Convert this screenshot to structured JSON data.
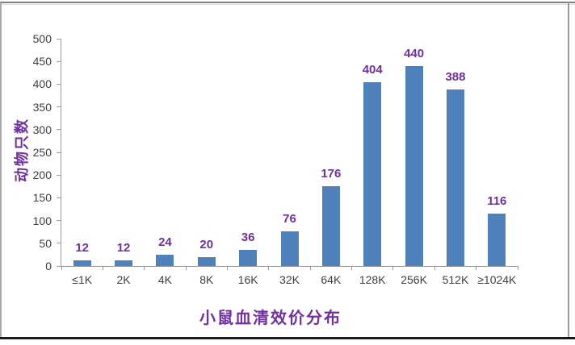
{
  "chart_data": {
    "type": "bar",
    "title": "",
    "categories": [
      "≤1K",
      "2K",
      "4K",
      "8K",
      "16K",
      "32K",
      "64K",
      "128K",
      "256K",
      "512K",
      "≥1024K"
    ],
    "values": [
      12,
      12,
      24,
      20,
      36,
      76,
      176,
      404,
      440,
      388,
      116
    ],
    "xlabel": "小鼠血清效价分布",
    "ylabel": "动物只数",
    "ylim": [
      0,
      500
    ],
    "yticks": [
      0,
      50,
      100,
      150,
      200,
      250,
      300,
      350,
      400,
      450,
      500
    ],
    "grid": false,
    "legend": "none",
    "colors": {
      "bar": "#4f81bd",
      "value_label": "#7030a0",
      "axis_title": "#7030a0",
      "tick_label": "#3f3f3f",
      "axis_line": "#9a9a9a",
      "tick_mark": "#9a9a9a"
    }
  }
}
